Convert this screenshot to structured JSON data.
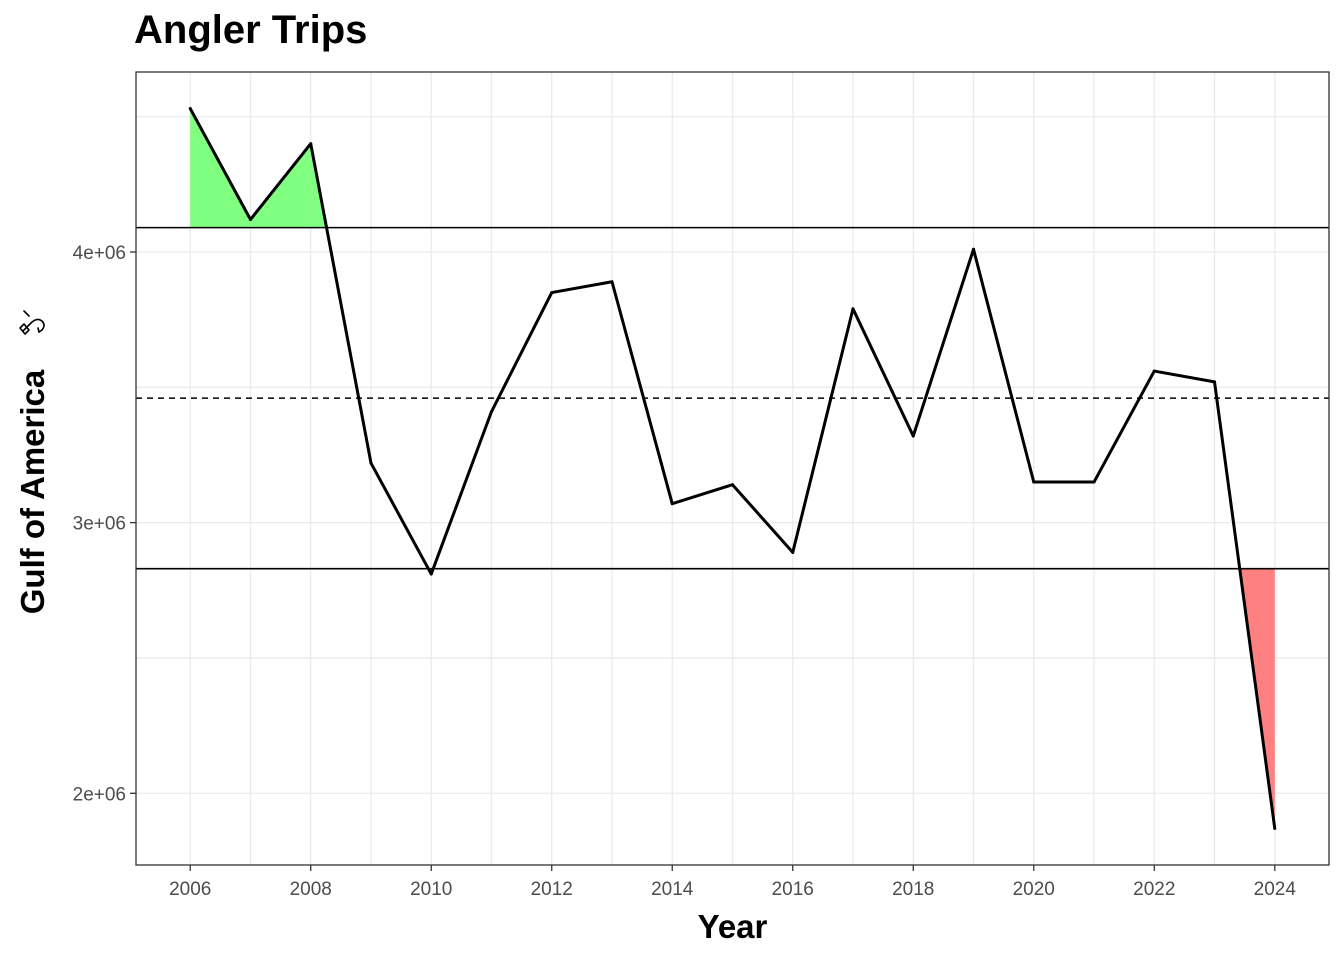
{
  "chart_data": {
    "type": "line",
    "title": "Angler Trips",
    "xlabel": "Year",
    "ylabel": "Gulf of America",
    "ylabel_icon": "fishing-hook-icon",
    "x": [
      2006,
      2007,
      2008,
      2009,
      2010,
      2011,
      2012,
      2013,
      2014,
      2015,
      2016,
      2017,
      2018,
      2019,
      2020,
      2021,
      2022,
      2023,
      2024
    ],
    "values": [
      4530000,
      4120000,
      4400000,
      3220000,
      2810000,
      3410000,
      3850000,
      3890000,
      3070000,
      3140000,
      2890000,
      3790000,
      3320000,
      4010000,
      3150000,
      3150000,
      3560000,
      3520000,
      1870000
    ],
    "mean_line": 3460000,
    "upper_line": 4090000,
    "lower_line": 2830000,
    "xlim": [
      2005.1,
      2024.9
    ],
    "ylim": [
      1735000,
      4665000
    ],
    "x_ticks": [
      2006,
      2008,
      2010,
      2012,
      2014,
      2016,
      2018,
      2020,
      2022,
      2024
    ],
    "y_ticks": [
      2000000,
      3000000,
      4000000
    ],
    "y_tick_labels": [
      "2e+06",
      "3e+06",
      "4e+06"
    ],
    "above_fill_color": "#80ff80",
    "below_fill_color": "#ff8080",
    "line_color": "#000000",
    "grid": true
  }
}
